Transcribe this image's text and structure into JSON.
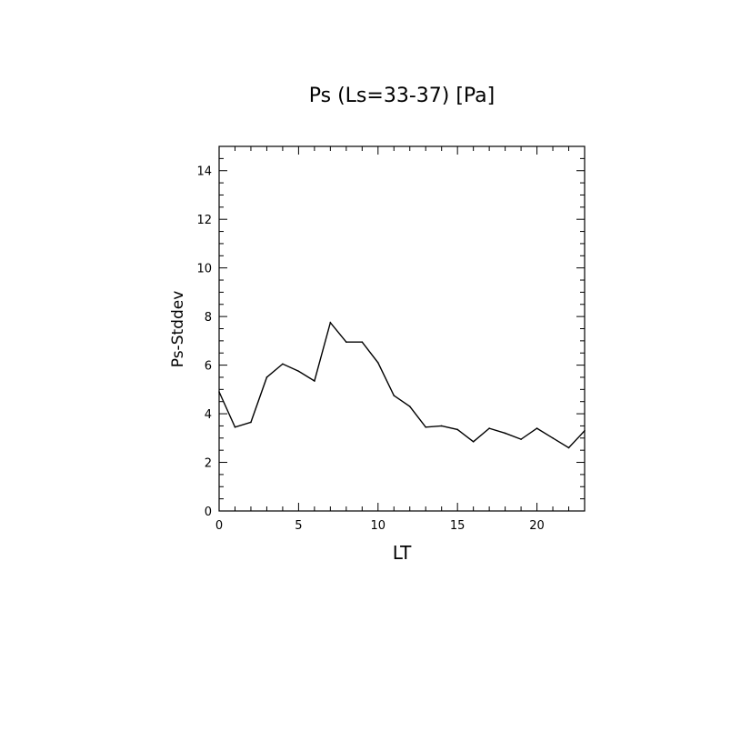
{
  "chart_data": {
    "type": "line",
    "title": "Ps (Ls=33-37) [Pa]",
    "xlabel": "LT",
    "ylabel": "Ps-Stddev",
    "xlim": [
      0,
      23
    ],
    "ylim": [
      0,
      15
    ],
    "xticks": [
      0,
      5,
      10,
      15,
      20
    ],
    "yticks": [
      0,
      2,
      4,
      6,
      8,
      10,
      12,
      14
    ],
    "grid": false,
    "series": [
      {
        "x": [
          0,
          1,
          2,
          3,
          4,
          5,
          6,
          7,
          8,
          9,
          10,
          11,
          12,
          13,
          14,
          15,
          16,
          17,
          18,
          19,
          20,
          21,
          22,
          23
        ],
        "values": [
          4.9,
          3.45,
          3.65,
          5.5,
          6.05,
          5.75,
          5.35,
          7.75,
          6.95,
          6.95,
          6.1,
          4.75,
          4.3,
          3.45,
          3.5,
          3.35,
          2.85,
          3.4,
          3.2,
          2.95,
          3.4,
          3.0,
          2.6,
          3.3
        ]
      }
    ]
  }
}
